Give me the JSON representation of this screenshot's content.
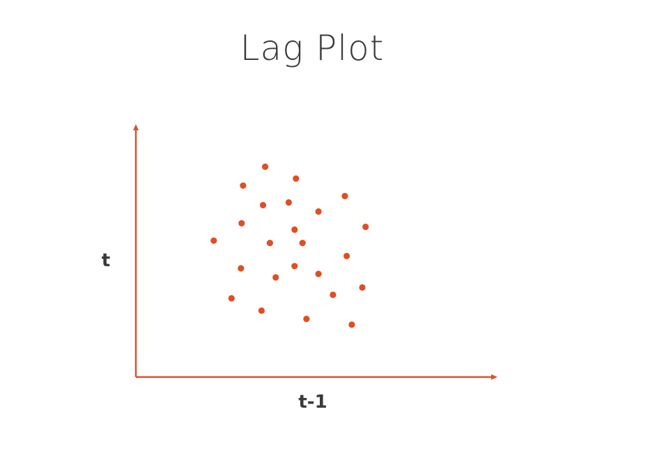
{
  "chart_data": {
    "type": "scatter",
    "title": "Lag Plot",
    "xlabel": "t-1",
    "ylabel": "t",
    "grid": false,
    "colors": {
      "axis": "#d9532b",
      "points": "#e04e24",
      "text": "#3a3a3a"
    },
    "xlim": [
      0,
      10
    ],
    "ylim": [
      0,
      10
    ],
    "points": [
      {
        "x": 3.57,
        "y": 8.36
      },
      {
        "x": 2.96,
        "y": 7.61
      },
      {
        "x": 4.42,
        "y": 7.89
      },
      {
        "x": 5.77,
        "y": 7.19
      },
      {
        "x": 2.92,
        "y": 6.11
      },
      {
        "x": 3.51,
        "y": 6.83
      },
      {
        "x": 4.22,
        "y": 6.94
      },
      {
        "x": 5.04,
        "y": 6.58
      },
      {
        "x": 6.34,
        "y": 5.97
      },
      {
        "x": 4.38,
        "y": 5.86
      },
      {
        "x": 2.15,
        "y": 5.42
      },
      {
        "x": 3.7,
        "y": 5.33
      },
      {
        "x": 4.6,
        "y": 5.33
      },
      {
        "x": 5.82,
        "y": 4.81
      },
      {
        "x": 2.9,
        "y": 4.32
      },
      {
        "x": 4.38,
        "y": 4.41
      },
      {
        "x": 3.86,
        "y": 3.96
      },
      {
        "x": 5.04,
        "y": 4.1
      },
      {
        "x": 6.25,
        "y": 3.56
      },
      {
        "x": 2.64,
        "y": 3.13
      },
      {
        "x": 5.44,
        "y": 3.27
      },
      {
        "x": 3.47,
        "y": 2.64
      },
      {
        "x": 4.71,
        "y": 2.31
      },
      {
        "x": 5.96,
        "y": 2.08
      }
    ]
  }
}
